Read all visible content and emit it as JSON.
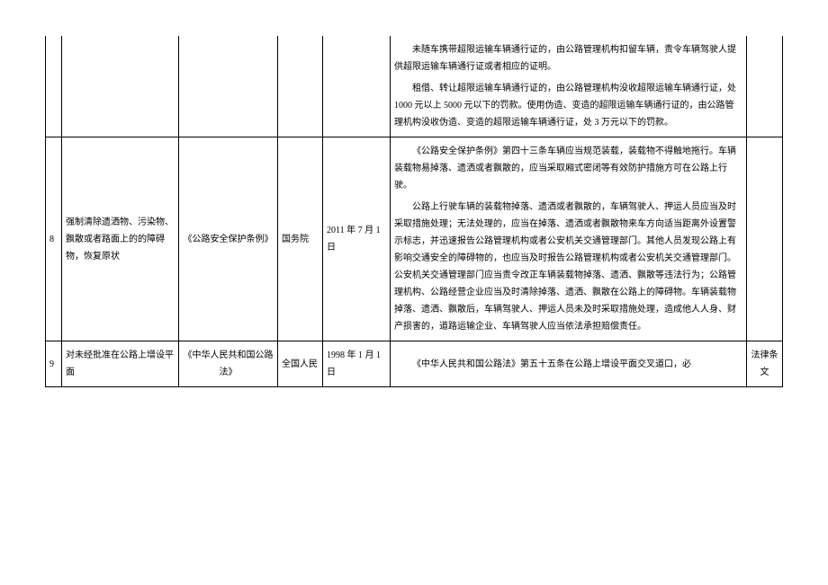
{
  "rows": [
    {
      "num": "",
      "action": "",
      "basis": "",
      "dept": "",
      "date": "",
      "paragraphs": [
        "未随车携带超限运输车辆通行证的，由公路管理机构扣留车辆，责令车辆驾驶人提供超限运输车辆通行证或者相应的证明。",
        "租借、转让超限运输车辆通行证的，由公路管理机构没收超限运输车辆通行证，处 1000 元以上 5000 元以下的罚款。使用伪造、变造的超限运输车辆通行证的，由公路管理机构没收伪造、变造的超限运输车辆通行证，处 3 万元以下的罚款。"
      ],
      "type": ""
    },
    {
      "num": "8",
      "action": "强制清除遗洒物、污染物、飘散或者路面上的的障碍物，恢复原状",
      "basis": "《公路安全保护条例》",
      "dept": "国务院",
      "date": "2011 年 7 月 1 日",
      "paragraphs": [
        "《公路安全保护条例》第四十三条车辆应当规范装载，装载物不得触地拖行。车辆装载物易掉落、遗洒或者飘散的，应当采取厢式密闭等有效防护措施方可在公路上行驶。",
        "公路上行驶车辆的装载物掉落、遗洒或者飘散的，车辆驾驶人、押运人员应当及时采取措施处理；无法处理的，应当在掉落、遗洒或者飘散物来车方向适当距离外设置警示标志，并迅速报告公路管理机构或者公安机关交通管理部门。其他人员发现公路上有影响交通安全的障碍物的，也应当及时报告公路管理机构或者公安机关交通管理部门。公安机关交通管理部门应当责令改正车辆装载物掉落、遗洒、飘散等违法行为；公路管理机构、公路经营企业应当及时清除掉落、遗洒、飘散在公路上的障碍物。车辆装载物掉落、遗洒、飘散后，车辆驾驶人、押运人员未及时采取措施处理，造成他人人身、财产损害的，道路运输企业、车辆驾驶人应当依法承担赔偿责任。"
      ],
      "type": ""
    },
    {
      "num": "9",
      "action": "对未经批准在公路上增设平面",
      "basis": "《中华人民共和国公路法》",
      "dept": "全国人民",
      "date": "1998 年 1 月 1 日",
      "paragraphs": [
        "《中华人民共和国公路法》第五十五条在公路上增设平面交叉道口，必"
      ],
      "type": "法律条文"
    }
  ]
}
